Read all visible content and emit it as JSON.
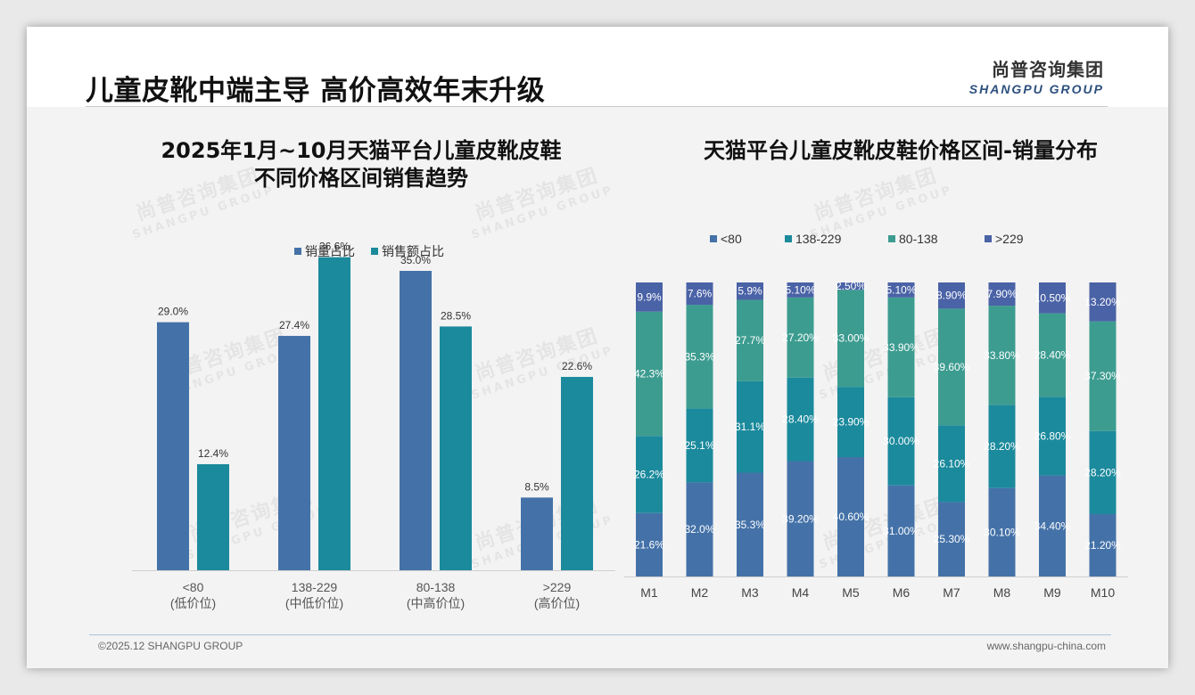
{
  "page": {
    "title": "儿童皮靴中端主导 高价高效年末升级",
    "logo_cn": "尚普咨询集团",
    "logo_en": "SHANGPU GROUP",
    "footer_left": "©2025.12 SHANGPU GROUP",
    "footer_right": "www.shangpu-china.com",
    "watermark_cn": "尚普咨询集团",
    "watermark_en": "SHANGPU GROUP"
  },
  "chart_data": [
    {
      "type": "bar",
      "title_line1": "2025年1月~10月天猫平台儿童皮靴皮鞋",
      "title_line2": "不同价格区间销售趋势",
      "categories": [
        "<80",
        "138-229",
        "80-138",
        ">229"
      ],
      "category_sublabels": [
        "(低价位)",
        "(中低价位)",
        "(中高价位)",
        "(高价位)"
      ],
      "series": [
        {
          "name": "销量占比",
          "color": "#4472a8",
          "values": [
            29.0,
            27.4,
            35.0,
            8.5
          ],
          "labels": [
            "29.0%",
            "27.4%",
            "35.0%",
            "8.5%"
          ]
        },
        {
          "name": "销售额占比",
          "color": "#1b8a9c",
          "values": [
            12.4,
            36.6,
            28.5,
            22.6
          ],
          "labels": [
            "12.4%",
            "36.6%",
            "28.5%",
            "22.6%"
          ]
        }
      ],
      "ylim": [
        0,
        40
      ]
    },
    {
      "type": "bar",
      "stacked": true,
      "title": "天猫平台儿童皮靴皮鞋价格区间-销量分布",
      "categories": [
        "M1",
        "M2",
        "M3",
        "M4",
        "M5",
        "M6",
        "M7",
        "M8",
        "M9",
        "M10"
      ],
      "series": [
        {
          "name": "<80",
          "color": "#4472a8",
          "values": [
            21.6,
            32.0,
            35.3,
            39.2,
            40.6,
            31.0,
            25.3,
            30.1,
            34.4,
            21.2
          ],
          "labels": [
            "21.6%",
            "32.0%",
            "35.3%",
            "39.20%",
            "40.60%",
            "31.00%",
            "25.30%",
            "30.10%",
            "34.40%",
            "21.20%"
          ]
        },
        {
          "name": "138-229",
          "color": "#1b8a9c",
          "values": [
            26.2,
            25.1,
            31.1,
            28.4,
            23.9,
            30.0,
            26.1,
            28.2,
            26.8,
            28.2
          ],
          "labels": [
            "26.2%",
            "25.1%",
            "31.1%",
            "28.40%",
            "23.90%",
            "30.00%",
            "26.10%",
            "28.20%",
            "26.80%",
            "28.20%"
          ]
        },
        {
          "name": "80-138",
          "color": "#3d9c90",
          "values": [
            42.3,
            35.3,
            27.7,
            27.2,
            33.0,
            33.9,
            39.6,
            33.8,
            28.4,
            37.3
          ],
          "labels": [
            "42.3%",
            "35.3%",
            "27.7%",
            "27.20%",
            "33.00%",
            "33.90%",
            "39.60%",
            "33.80%",
            "28.40%",
            "37.30%"
          ]
        },
        {
          "name": ">229",
          "color": "#4a62a6",
          "values": [
            9.9,
            7.6,
            5.9,
            5.1,
            2.5,
            5.1,
            8.9,
            7.9,
            10.5,
            13.2
          ],
          "labels": [
            "9.9%",
            "7.6%",
            "5.9%",
            "5.10%",
            "2.50%",
            "5.10%",
            "8.90%",
            "7.90%",
            "10.50%",
            "13.20%"
          ]
        }
      ],
      "ylim": [
        0,
        100
      ]
    }
  ]
}
